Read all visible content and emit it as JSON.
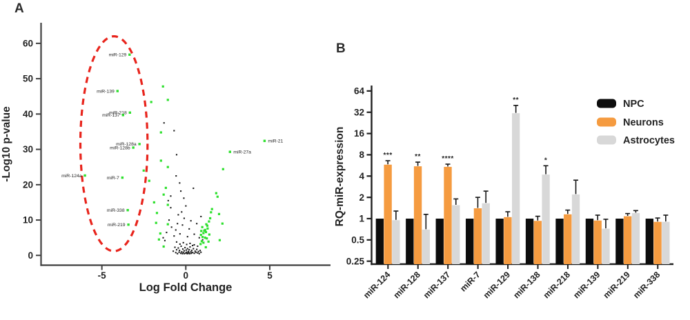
{
  "figure": {
    "background": "#ffffff"
  },
  "chart_data": [
    {
      "type": "scatter",
      "subtype": "volcano",
      "tag": "A",
      "xlabel": "Log Fold Change",
      "ylabel": "-Log10 p-value",
      "x_ticks": [
        -5,
        0,
        5
      ],
      "y_ticks": [
        0,
        10,
        20,
        30,
        40,
        50,
        60
      ],
      "xlim": [
        -8.6,
        8.6
      ],
      "ylim": [
        0,
        65
      ],
      "grid": false,
      "colors": {
        "axis": "#3f3f3f",
        "tick_text": "#333333",
        "black_point": "#1a1a1a",
        "green_point": "#2ee02e",
        "ellipse": "#e8241c",
        "point_label": "#454545"
      },
      "ellipse": {
        "cx": -4.28,
        "cy": 31.6,
        "rx": 2.0,
        "ry": 30.4
      },
      "labeled_points": [
        {
          "name": "miR-129",
          "x": -3.35,
          "y": 56.8,
          "side": "left"
        },
        {
          "name": "miR-139",
          "x": -4.07,
          "y": 46.5,
          "side": "left"
        },
        {
          "name": "miR-218",
          "x": -3.33,
          "y": 40.4,
          "side": "left"
        },
        {
          "name": "miR-137",
          "x": -3.74,
          "y": 39.7,
          "side": "left"
        },
        {
          "name": "miR-128a",
          "x": -2.76,
          "y": 31.5,
          "side": "left"
        },
        {
          "name": "miR-128b",
          "x": -3.13,
          "y": 30.5,
          "side": "left"
        },
        {
          "name": "miR-124a",
          "x": -6.01,
          "y": 22.6,
          "side": "left"
        },
        {
          "name": "miR-7",
          "x": -3.78,
          "y": 22.0,
          "side": "left"
        },
        {
          "name": "miR-338",
          "x": -3.46,
          "y": 12.8,
          "side": "left"
        },
        {
          "name": "miR-219",
          "x": -3.42,
          "y": 8.7,
          "side": "left"
        },
        {
          "name": "miR-27a",
          "x": 2.63,
          "y": 29.3,
          "side": "right"
        },
        {
          "name": "miR-21",
          "x": 4.69,
          "y": 32.4,
          "side": "right"
        }
      ],
      "green_points": [
        [
          -1.36,
          47.8
        ],
        [
          -1.07,
          44.0
        ],
        [
          -2.06,
          43.4
        ],
        [
          -1.48,
          34.8
        ],
        [
          -1.48,
          26.8
        ],
        [
          -2.51,
          24.0
        ],
        [
          -1.07,
          25.0
        ],
        [
          -2.18,
          21.1
        ],
        [
          -1.19,
          19.1
        ],
        [
          -1.32,
          17.2
        ],
        [
          -1.89,
          15.0
        ],
        [
          -1.07,
          14.3
        ],
        [
          -1.72,
          12.0
        ],
        [
          -1.77,
          9.2
        ],
        [
          -1.07,
          8.8
        ],
        [
          -1.52,
          6.2
        ],
        [
          -1.6,
          4.5
        ],
        [
          -1.32,
          2.5
        ],
        [
          2.22,
          24.4
        ],
        [
          1.81,
          17.6
        ],
        [
          1.89,
          16.6
        ],
        [
          1.56,
          13.1
        ],
        [
          1.98,
          11.7
        ],
        [
          2.18,
          9.0
        ],
        [
          1.28,
          8.4
        ],
        [
          1.15,
          7.2
        ],
        [
          1.4,
          5.9
        ],
        [
          2.02,
          4.3
        ],
        [
          1.19,
          2.3
        ],
        [
          0.95,
          4.0
        ],
        [
          1.0,
          5.2
        ],
        [
          1.05,
          6.3
        ],
        [
          1.1,
          7.0
        ],
        [
          0.9,
          5.8
        ],
        [
          1.2,
          6.6
        ],
        [
          1.25,
          4.8
        ],
        [
          1.05,
          3.6
        ],
        [
          0.98,
          8.0
        ],
        [
          1.3,
          7.6
        ],
        [
          1.15,
          5.0
        ],
        [
          0.92,
          6.9
        ],
        [
          1.22,
          8.8
        ],
        [
          1.35,
          3.9
        ],
        [
          0.88,
          3.2
        ],
        [
          1.45,
          10.5
        ],
        [
          1.5,
          12.2
        ],
        [
          1.38,
          9.6
        ]
      ],
      "black_points": [
        [
          -0.75,
          1.2
        ],
        [
          -0.6,
          0.8
        ],
        [
          -0.55,
          1.6
        ],
        [
          -0.5,
          0.5
        ],
        [
          -0.45,
          2.1
        ],
        [
          -0.4,
          0.9
        ],
        [
          -0.38,
          1.4
        ],
        [
          -0.3,
          0.6
        ],
        [
          -0.28,
          2.6
        ],
        [
          -0.25,
          1.0
        ],
        [
          -0.2,
          0.5
        ],
        [
          -0.18,
          1.8
        ],
        [
          -0.15,
          0.8
        ],
        [
          -0.1,
          1.3
        ],
        [
          -0.08,
          0.5
        ],
        [
          -0.05,
          2.2
        ],
        [
          0.0,
          0.7
        ],
        [
          0.02,
          1.5
        ],
        [
          0.05,
          0.9
        ],
        [
          0.08,
          0.5
        ],
        [
          0.1,
          1.9
        ],
        [
          0.12,
          0.6
        ],
        [
          0.15,
          1.1
        ],
        [
          0.18,
          0.8
        ],
        [
          0.2,
          1.6
        ],
        [
          0.22,
          0.5
        ],
        [
          0.25,
          2.4
        ],
        [
          0.3,
          1.0
        ],
        [
          0.32,
          0.6
        ],
        [
          0.35,
          1.4
        ],
        [
          0.4,
          0.8
        ],
        [
          0.45,
          1.9
        ],
        [
          0.5,
          0.6
        ],
        [
          0.55,
          1.2
        ],
        [
          0.6,
          0.9
        ],
        [
          0.65,
          1.7
        ],
        [
          0.7,
          0.7
        ],
        [
          0.75,
          1.1
        ],
        [
          0.8,
          0.5
        ],
        [
          0.85,
          1.4
        ],
        [
          0.9,
          0.9
        ],
        [
          -0.35,
          3.2
        ],
        [
          -0.15,
          3.6
        ],
        [
          0.05,
          3.1
        ],
        [
          0.25,
          3.4
        ],
        [
          0.5,
          3.0
        ],
        [
          -0.55,
          3.8
        ],
        [
          0.7,
          2.6
        ],
        [
          -0.65,
          2.3
        ],
        [
          0.4,
          2.8
        ],
        [
          -1.35,
          5.0
        ],
        [
          -1.25,
          4.2
        ],
        [
          -1.15,
          6.5
        ],
        [
          -1.0,
          10.0
        ],
        [
          -0.9,
          13.5
        ],
        [
          -0.85,
          8.0
        ],
        [
          -0.7,
          5.5
        ],
        [
          -0.6,
          7.2
        ],
        [
          -0.5,
          9.0
        ],
        [
          -0.45,
          11.5
        ],
        [
          -0.35,
          6.1
        ],
        [
          -0.25,
          12.3
        ],
        [
          -0.2,
          8.6
        ],
        [
          -0.1,
          10.5
        ],
        [
          0.0,
          14.0
        ],
        [
          0.1,
          5.3
        ],
        [
          0.2,
          7.5
        ],
        [
          0.3,
          9.8
        ],
        [
          0.5,
          6.0
        ],
        [
          0.65,
          9.0
        ],
        [
          0.8,
          5.0
        ],
        [
          0.9,
          11.0
        ],
        [
          1.0,
          4.4
        ],
        [
          -1.3,
          37.5
        ],
        [
          -0.7,
          35.3
        ],
        [
          -0.58,
          22.5
        ],
        [
          -0.55,
          28.5
        ],
        [
          -0.37,
          20.5
        ],
        [
          -0.3,
          18.2
        ],
        [
          -0.12,
          16.2
        ],
        [
          0.45,
          19.0
        ],
        [
          -0.9,
          16.8
        ],
        [
          -1.05,
          15.5
        ]
      ]
    },
    {
      "type": "bar",
      "tag": "B",
      "ylabel": "RQ-miR-expression",
      "scale": "log2",
      "y_ticks": [
        64,
        32,
        16,
        8,
        4,
        2,
        1,
        0.5,
        0.25
      ],
      "ylim": [
        0.25,
        64
      ],
      "grid": false,
      "legend_position": "top-right",
      "colors": {
        "axis": "#1f1f1f",
        "tick_text": "#2c2c2c",
        "error_bar": "#141414",
        "star": "#1a1a1a"
      },
      "categories": [
        "miR-124",
        "miR-128",
        "miR-137",
        "miR-7",
        "miR-129",
        "miR-138",
        "miR-218",
        "miR-139",
        "miR-219",
        "miR-338"
      ],
      "series": [
        {
          "name": "NPC",
          "color": "#0d0d0d",
          "values": [
            1,
            1,
            1,
            1,
            1,
            1,
            1,
            1,
            1,
            1
          ],
          "errors": [
            null,
            null,
            null,
            null,
            null,
            null,
            null,
            null,
            null,
            null
          ]
        },
        {
          "name": "Neurons",
          "color": "#f59b40",
          "values": [
            5.8,
            5.5,
            5.4,
            1.4,
            1.05,
            0.93,
            1.15,
            0.94,
            1.08,
            0.9
          ],
          "errors": [
            6.6,
            6.3,
            5.9,
            2.0,
            1.25,
            1.08,
            1.32,
            1.12,
            1.18,
            1.02
          ]
        },
        {
          "name": "Astrocytes",
          "color": "#d8d8d8",
          "values": [
            0.95,
            0.7,
            1.55,
            1.65,
            31,
            4.2,
            2.2,
            0.72,
            1.2,
            0.9
          ],
          "errors": [
            1.28,
            1.15,
            1.9,
            2.45,
            40,
            5.6,
            3.5,
            0.98,
            1.3,
            1.12
          ]
        }
      ],
      "significance": [
        {
          "category": "miR-124",
          "series": "Neurons",
          "label": "***"
        },
        {
          "category": "miR-128",
          "series": "Neurons",
          "label": "**"
        },
        {
          "category": "miR-137",
          "series": "Neurons",
          "label": "****"
        },
        {
          "category": "miR-129",
          "series": "Astrocytes",
          "label": "**"
        },
        {
          "category": "miR-138",
          "series": "Astrocytes",
          "label": "*"
        }
      ],
      "legend": [
        {
          "label": "NPC",
          "color": "#0d0d0d"
        },
        {
          "label": "Neurons",
          "color": "#f59b40"
        },
        {
          "label": "Astrocytes",
          "color": "#d8d8d8"
        }
      ]
    }
  ]
}
